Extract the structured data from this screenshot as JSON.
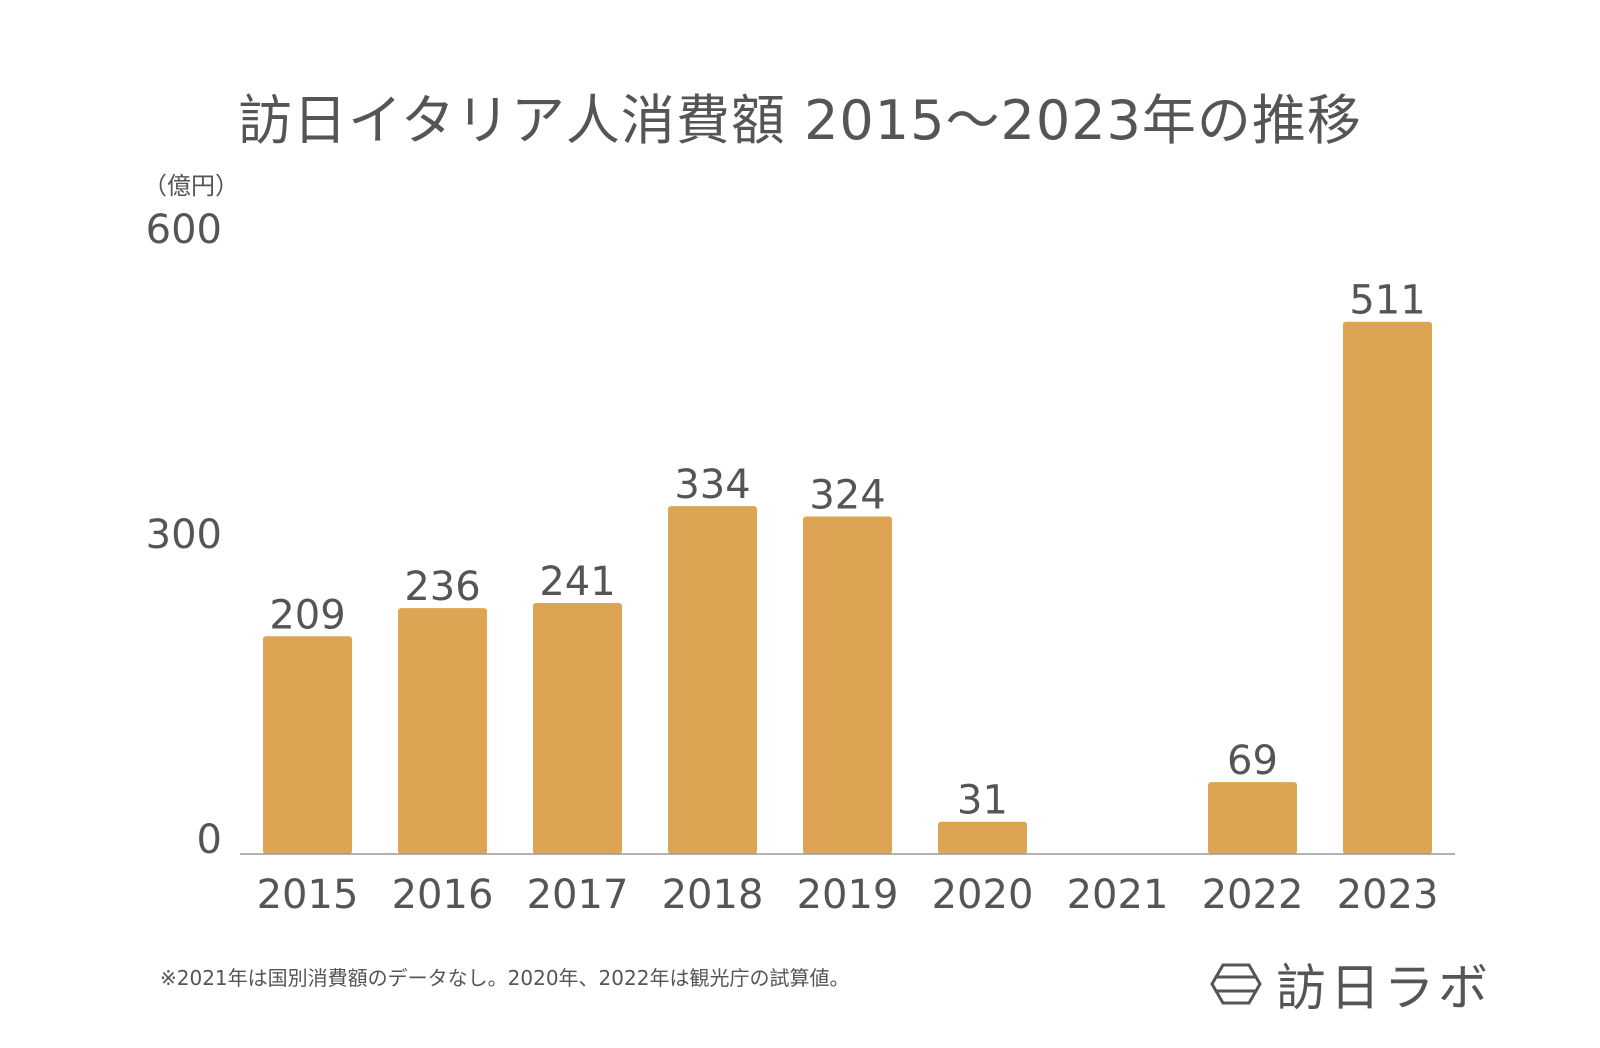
{
  "title": "訪日イタリア人消費額 2015〜2023年の推移",
  "unit_label": "（億円）",
  "footnote": "※2021年は国別消費額のデータなし。2020年、2022年は観光庁の試算値。",
  "brand": {
    "name": "訪日ラボ",
    "icon": "hexagon-logo-icon"
  },
  "colors": {
    "bar": "#DCA453",
    "axis": "#999999",
    "text": "#555555"
  },
  "chart_data": {
    "type": "bar",
    "title": "訪日イタリア人消費額 2015〜2023年の推移",
    "ylabel": "（億円）",
    "xlabel": "",
    "ylim": [
      0,
      600
    ],
    "yticks": [
      "0",
      "300",
      "600"
    ],
    "categories": [
      "2015",
      "2016",
      "2017",
      "2018",
      "2019",
      "2020",
      "2021",
      "2022",
      "2023"
    ],
    "values": [
      209,
      236,
      241,
      334,
      324,
      31,
      null,
      69,
      511
    ],
    "data_labels": [
      "209",
      "236",
      "241",
      "334",
      "324",
      "31",
      "",
      "69",
      "511"
    ],
    "grid": false
  }
}
